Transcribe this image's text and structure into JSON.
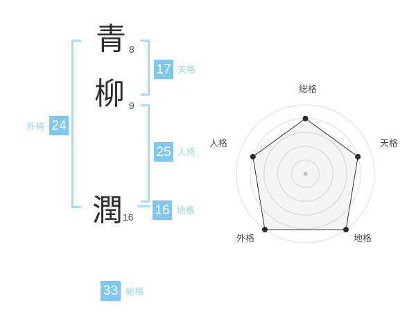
{
  "name_panel": {
    "surname_chars": [
      {
        "char": "青",
        "strokes": "8"
      },
      {
        "char": "柳",
        "strokes": "9"
      }
    ],
    "given_chars": [
      {
        "char": "潤",
        "strokes": "16"
      }
    ],
    "kaku": {
      "tenkaku": {
        "label": "天格",
        "value": "17"
      },
      "jinkaku": {
        "label": "人格",
        "value": "25"
      },
      "chikaku": {
        "label": "地格",
        "value": "16"
      },
      "gaikaku": {
        "label": "外格",
        "value": "24"
      },
      "soukaku": {
        "label": "総格",
        "value": "33"
      }
    }
  },
  "chart_data": {
    "type": "radar",
    "categories": [
      "総格",
      "天格",
      "地格",
      "外格",
      "人格"
    ],
    "values": [
      4,
      4,
      5,
      5,
      4
    ],
    "max": 5,
    "rings": 5,
    "grid": "concentric-circles",
    "legend_position": "none",
    "title": ""
  },
  "colors": {
    "box_blue": "#7dc7f1",
    "label_blue": "#9bd4f6",
    "bracket_blue": "#a6dcf9",
    "kanji_dark": "#2f2f2f",
    "stroke_count_gray": "#4a4a4a",
    "chart_label_gray": "#4f4f4f",
    "grid_gray": "#dcdcdc",
    "radar_line": "#333333",
    "radar_dot": "#2b2b2b",
    "radar_center_dot": "#c9c9c9",
    "radar_fill": "rgba(120,120,120,0.08)"
  }
}
